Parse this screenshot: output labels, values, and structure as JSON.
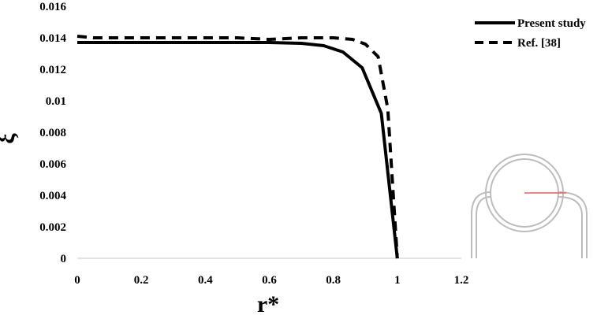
{
  "chart_data": {
    "type": "line",
    "xlabel": "r*",
    "ylabel": "ξ",
    "xlim": [
      0,
      1.2
    ],
    "ylim": [
      0,
      0.016
    ],
    "x_ticks": [
      "0",
      "0.2",
      "0.4",
      "0.6",
      "0.8",
      "1",
      "1.2"
    ],
    "y_ticks": [
      "0",
      "0.002",
      "0.004",
      "0.006",
      "0.008",
      "0.01",
      "0.012",
      "0.014",
      "0.016"
    ],
    "grid": false,
    "legend_position": "top-right",
    "series": [
      {
        "name": "Present study",
        "style": "solid",
        "color": "#000000",
        "x": [
          0,
          0.1,
          0.2,
          0.3,
          0.4,
          0.5,
          0.6,
          0.7,
          0.77,
          0.83,
          0.89,
          0.95,
          1.0
        ],
        "y": [
          0.0137,
          0.0137,
          0.0137,
          0.0137,
          0.0137,
          0.0137,
          0.0137,
          0.01365,
          0.0135,
          0.0131,
          0.0121,
          0.0092,
          0.0
        ]
      },
      {
        "name": "Ref. [38]",
        "style": "dashed",
        "color": "#000000",
        "x": [
          0,
          0.05,
          0.1,
          0.2,
          0.3,
          0.4,
          0.5,
          0.6,
          0.7,
          0.8,
          0.86,
          0.9,
          0.94,
          0.97,
          1.0
        ],
        "y": [
          0.0141,
          0.014,
          0.014,
          0.014,
          0.014,
          0.014,
          0.014,
          0.0139,
          0.014,
          0.014,
          0.0139,
          0.0136,
          0.0128,
          0.0095,
          0.0
        ]
      }
    ]
  },
  "inset": {
    "description_icon": "pipe-cross-section-icon",
    "outline_color": "#bdbdbd",
    "radius_line_color": "#e06060"
  }
}
